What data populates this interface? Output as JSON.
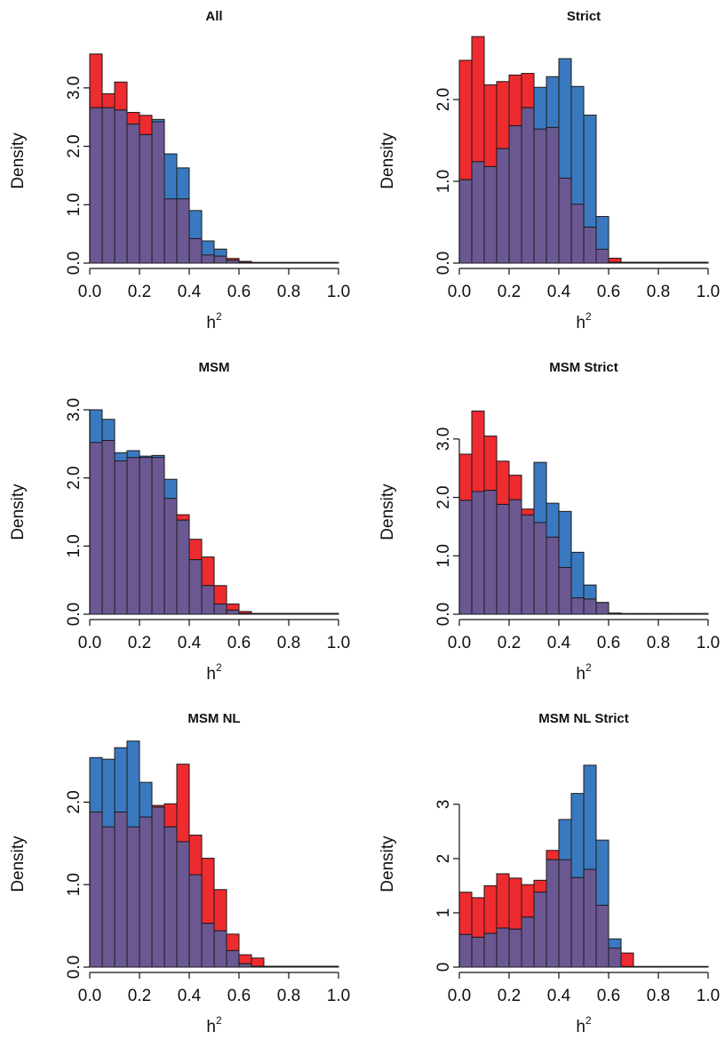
{
  "colors": {
    "red": "#ee2b2f",
    "blue": "#3a79bf",
    "overlap": "#6b5892"
  },
  "chart_data": [
    {
      "type": "bar",
      "title": "All",
      "xlabel": "h",
      "xlabel_sup": "2",
      "ylabel": "Density",
      "xlim": [
        0,
        1
      ],
      "ylim": [
        0,
        3.5
      ],
      "xticks": [
        "0.0",
        "0.2",
        "0.4",
        "0.6",
        "0.8",
        "1.0"
      ],
      "yticks": [
        0,
        1,
        2,
        3
      ],
      "ytick_labels": [
        "0.0",
        "1.0",
        "2.0",
        "3.0"
      ],
      "bin_width": 0.05,
      "bin_start": [
        0.0,
        0.05,
        0.1,
        0.15,
        0.2,
        0.25,
        0.3,
        0.35,
        0.4,
        0.45,
        0.5,
        0.55,
        0.6,
        0.65,
        0.7,
        0.75,
        0.8,
        0.85,
        0.9,
        0.95
      ],
      "series": [
        {
          "color": "red",
          "values": [
            3.58,
            2.9,
            3.1,
            2.58,
            2.53,
            2.42,
            1.1,
            1.1,
            0.42,
            0.14,
            0.12,
            0.08,
            0.03,
            0.01,
            0.01,
            0.01,
            0.01,
            0.01,
            0.01,
            0.01
          ]
        },
        {
          "color": "blue",
          "values": [
            2.66,
            2.66,
            2.62,
            2.38,
            2.2,
            2.46,
            1.87,
            1.63,
            0.9,
            0.38,
            0.24,
            0.05,
            0.01,
            0.01,
            0.01,
            0.01,
            0.01,
            0.01,
            0.01,
            0.01
          ]
        }
      ]
    },
    {
      "type": "bar",
      "title": "Strict",
      "xlabel": "h",
      "xlabel_sup": "2",
      "ylabel": "Density",
      "xlim": [
        0,
        1
      ],
      "ylim": [
        0,
        2.5
      ],
      "xticks": [
        "0.0",
        "0.2",
        "0.4",
        "0.6",
        "0.8",
        "1.0"
      ],
      "yticks": [
        0,
        1,
        2
      ],
      "ytick_labels": [
        "0.0",
        "1.0",
        "2.0"
      ],
      "bin_width": 0.05,
      "bin_start": [
        0.0,
        0.05,
        0.1,
        0.15,
        0.2,
        0.25,
        0.3,
        0.35,
        0.4,
        0.45,
        0.5,
        0.55,
        0.6,
        0.65,
        0.7,
        0.75,
        0.8,
        0.85,
        0.9,
        0.95
      ],
      "series": [
        {
          "color": "red",
          "values": [
            2.48,
            2.77,
            2.18,
            2.22,
            2.3,
            2.32,
            1.64,
            1.66,
            1.04,
            0.72,
            0.44,
            0.17,
            0.06,
            0.01,
            0.01,
            0.01,
            0.01,
            0.01,
            0.01,
            0.01
          ]
        },
        {
          "color": "blue",
          "values": [
            1.02,
            1.24,
            1.18,
            1.4,
            1.68,
            1.9,
            2.15,
            2.28,
            2.5,
            2.16,
            1.81,
            0.57,
            0.01,
            0.01,
            0.01,
            0.01,
            0.01,
            0.01,
            0.01,
            0.01
          ]
        }
      ]
    },
    {
      "type": "bar",
      "title": "MSM",
      "xlabel": "h",
      "xlabel_sup": "2",
      "ylabel": "Density",
      "xlim": [
        0,
        1
      ],
      "ylim": [
        0,
        3.0
      ],
      "xticks": [
        "0.0",
        "0.2",
        "0.4",
        "0.6",
        "0.8",
        "1.0"
      ],
      "yticks": [
        0,
        1,
        2,
        3
      ],
      "ytick_labels": [
        "0.0",
        "1.0",
        "2.0",
        "3.0"
      ],
      "bin_width": 0.05,
      "bin_start": [
        0.0,
        0.05,
        0.1,
        0.15,
        0.2,
        0.25,
        0.3,
        0.35,
        0.4,
        0.45,
        0.5,
        0.55,
        0.6,
        0.65,
        0.7,
        0.75,
        0.8,
        0.85,
        0.9,
        0.95
      ],
      "series": [
        {
          "color": "red",
          "values": [
            2.52,
            2.55,
            2.25,
            2.3,
            2.3,
            2.3,
            1.7,
            1.46,
            1.1,
            0.84,
            0.42,
            0.15,
            0.04,
            0.01,
            0.01,
            0.01,
            0.01,
            0.01,
            0.01,
            0.01
          ]
        },
        {
          "color": "blue",
          "values": [
            3.0,
            2.86,
            2.37,
            2.4,
            2.32,
            2.33,
            1.98,
            1.38,
            0.8,
            0.42,
            0.15,
            0.06,
            0.01,
            0.01,
            0.01,
            0.01,
            0.01,
            0.01,
            0.01,
            0.01
          ]
        }
      ]
    },
    {
      "type": "bar",
      "title": "MSM Strict",
      "xlabel": "h",
      "xlabel_sup": "2",
      "ylabel": "Density",
      "xlim": [
        0,
        1
      ],
      "ylim": [
        0,
        3.5
      ],
      "xticks": [
        "0.0",
        "0.2",
        "0.4",
        "0.6",
        "0.8",
        "1.0"
      ],
      "yticks": [
        0,
        1,
        2,
        3
      ],
      "ytick_labels": [
        "0.0",
        "1.0",
        "2.0",
        "3.0"
      ],
      "bin_width": 0.05,
      "bin_start": [
        0.0,
        0.05,
        0.1,
        0.15,
        0.2,
        0.25,
        0.3,
        0.35,
        0.4,
        0.45,
        0.5,
        0.55,
        0.6,
        0.65,
        0.7,
        0.75,
        0.8,
        0.85,
        0.9,
        0.95
      ],
      "series": [
        {
          "color": "red",
          "values": [
            2.74,
            3.48,
            3.05,
            2.62,
            2.38,
            1.8,
            1.57,
            1.32,
            0.8,
            0.28,
            0.26,
            0.2,
            0.01,
            0.01,
            0.01,
            0.01,
            0.01,
            0.01,
            0.01,
            0.01
          ]
        },
        {
          "color": "blue",
          "values": [
            1.95,
            2.1,
            2.12,
            1.88,
            1.96,
            1.7,
            2.6,
            1.9,
            1.76,
            1.06,
            0.5,
            0.2,
            0.02,
            0.01,
            0.01,
            0.01,
            0.01,
            0.01,
            0.01,
            0.01
          ]
        }
      ]
    },
    {
      "type": "bar",
      "title": "MSM NL",
      "xlabel": "h",
      "xlabel_sup": "2",
      "ylabel": "Density",
      "xlim": [
        0,
        1
      ],
      "ylim": [
        0,
        2.5
      ],
      "xticks": [
        "0.0",
        "0.2",
        "0.4",
        "0.6",
        "0.8",
        "1.0"
      ],
      "yticks": [
        0,
        1,
        2
      ],
      "ytick_labels": [
        "0.0",
        "1.0",
        "2.0"
      ],
      "bin_width": 0.05,
      "bin_start": [
        0.0,
        0.05,
        0.1,
        0.15,
        0.2,
        0.25,
        0.3,
        0.35,
        0.4,
        0.45,
        0.5,
        0.55,
        0.6,
        0.65,
        0.7,
        0.75,
        0.8,
        0.85,
        0.9,
        0.95
      ],
      "series": [
        {
          "color": "red",
          "values": [
            1.88,
            1.7,
            1.88,
            1.7,
            1.82,
            1.96,
            1.98,
            2.46,
            1.6,
            1.32,
            0.94,
            0.4,
            0.15,
            0.11,
            0.01,
            0.01,
            0.01,
            0.01,
            0.01,
            0.01
          ]
        },
        {
          "color": "blue",
          "values": [
            2.54,
            2.52,
            2.66,
            2.74,
            2.24,
            1.94,
            1.7,
            1.52,
            1.12,
            0.53,
            0.44,
            0.2,
            0.04,
            0.01,
            0.01,
            0.01,
            0.01,
            0.01,
            0.01,
            0.01
          ]
        }
      ]
    },
    {
      "type": "bar",
      "title": "MSM NL Strict",
      "xlabel": "h",
      "xlabel_sup": "2",
      "ylabel": "Density",
      "xlim": [
        0,
        1
      ],
      "ylim": [
        0,
        3.8
      ],
      "xticks": [
        "0.0",
        "0.2",
        "0.4",
        "0.6",
        "0.8",
        "1.0"
      ],
      "yticks": [
        0,
        1,
        2,
        3
      ],
      "ytick_labels": [
        "0",
        "1",
        "2",
        "3"
      ],
      "bin_width": 0.05,
      "bin_start": [
        0.0,
        0.05,
        0.1,
        0.15,
        0.2,
        0.25,
        0.3,
        0.35,
        0.4,
        0.45,
        0.5,
        0.55,
        0.6,
        0.65,
        0.7,
        0.75,
        0.8,
        0.85,
        0.9,
        0.95
      ],
      "series": [
        {
          "color": "red",
          "values": [
            1.38,
            1.28,
            1.5,
            1.72,
            1.64,
            1.52,
            1.6,
            2.15,
            1.98,
            1.65,
            1.8,
            1.14,
            0.35,
            0.26,
            0.01,
            0.01,
            0.01,
            0.01,
            0.01,
            0.01
          ]
        },
        {
          "color": "blue",
          "values": [
            0.6,
            0.55,
            0.62,
            0.72,
            0.7,
            0.92,
            1.38,
            1.98,
            2.72,
            3.2,
            3.72,
            2.34,
            0.52,
            0.01,
            0.01,
            0.01,
            0.01,
            0.01,
            0.01,
            0.01
          ]
        }
      ]
    }
  ]
}
